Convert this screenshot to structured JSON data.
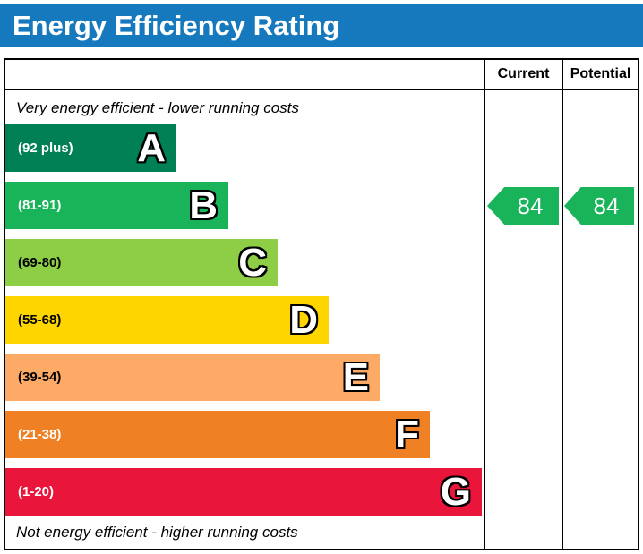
{
  "title": "Energy Efficiency Rating",
  "columns": {
    "current": "Current",
    "potential": "Potential"
  },
  "notes": {
    "top": "Very energy efficient - lower running costs",
    "bottom": "Not energy efficient - higher running costs"
  },
  "colors": {
    "title_bar": "#1679bd"
  },
  "chart_data": {
    "type": "bar",
    "title": "Energy Efficiency Rating",
    "categories": [
      "A",
      "B",
      "C",
      "D",
      "E",
      "F",
      "G"
    ],
    "bands": [
      {
        "letter": "A",
        "range": "(92 plus)",
        "color": "#008054",
        "text_color": "#ffffff"
      },
      {
        "letter": "B",
        "range": "(81-91)",
        "color": "#19b459",
        "text_color": "#ffffff"
      },
      {
        "letter": "C",
        "range": "(69-80)",
        "color": "#8dce46",
        "text_color": "#000000"
      },
      {
        "letter": "D",
        "range": "(55-68)",
        "color": "#ffd500",
        "text_color": "#000000"
      },
      {
        "letter": "E",
        "range": "(39-54)",
        "color": "#fcaa65",
        "text_color": "#000000"
      },
      {
        "letter": "F",
        "range": "(21-38)",
        "color": "#ef8023",
        "text_color": "#ffffff"
      },
      {
        "letter": "G",
        "range": "(1-20)",
        "color": "#e9153b",
        "text_color": "#ffffff"
      }
    ],
    "current": {
      "value": 84,
      "band": "B",
      "color": "#19b459"
    },
    "potential": {
      "value": 84,
      "band": "B",
      "color": "#19b459"
    }
  }
}
